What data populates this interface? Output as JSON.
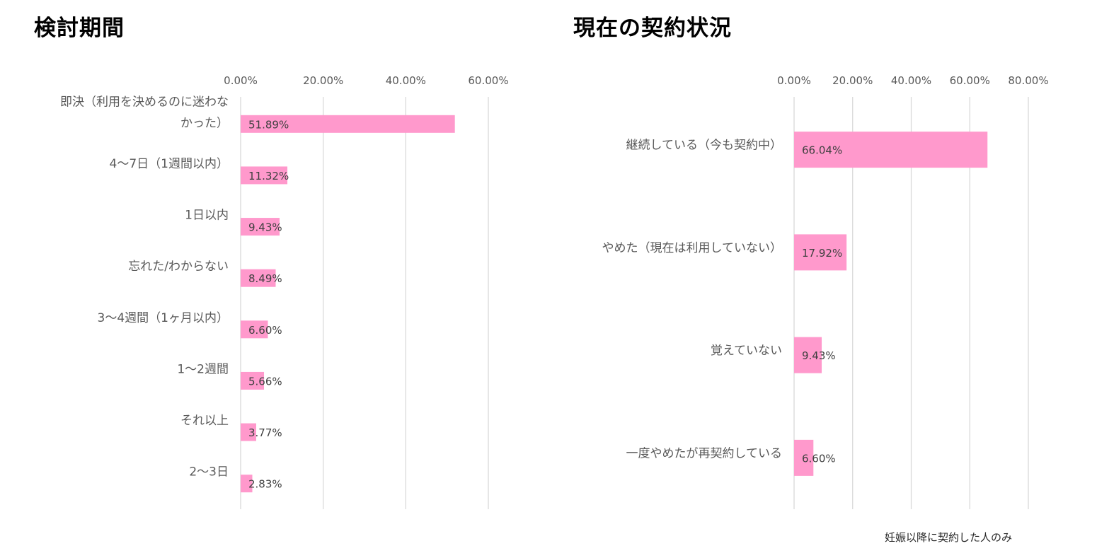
{
  "titles": {
    "left": "検討期間",
    "right": "現在の契約状況"
  },
  "footnote": "妊娠以降に契約した人のみ",
  "colors": {
    "bar": "#ff99cc",
    "grid": "#d9d9d9",
    "axis_text": "#595959",
    "data_label": "#404040"
  },
  "chart_data": [
    {
      "type": "bar",
      "orientation": "horizontal",
      "title": "検討期間",
      "categories": [
        [
          "即決（利用を決めるのに迷わな",
          "かった）"
        ],
        "4〜7日（1週間以内）",
        "1日以内",
        "忘れた/わからない",
        "3〜4週間（1ヶ月以内）",
        "1〜2週間",
        "それ以上",
        "2〜3日"
      ],
      "values": [
        51.89,
        11.32,
        9.43,
        8.49,
        6.6,
        5.66,
        3.77,
        2.83
      ],
      "value_labels": [
        "51.89%",
        "11.32%",
        "9.43%",
        "8.49%",
        "6.60%",
        "5.66%",
        "3.77%",
        "2.83%"
      ],
      "xlim": [
        0,
        60
      ],
      "ticks": [
        0,
        20,
        40,
        60
      ],
      "tick_labels": [
        "0.00%",
        "20.00%",
        "40.00%",
        "60.00%"
      ],
      "grid": true,
      "legend": "none"
    },
    {
      "type": "bar",
      "orientation": "horizontal",
      "title": "現在の契約状況",
      "categories": [
        "継続している（今も契約中）",
        "やめた（現在は利用していない）",
        "覚えていない",
        "一度やめたが再契約している"
      ],
      "values": [
        66.04,
        17.92,
        9.43,
        6.6
      ],
      "value_labels": [
        "66.04%",
        "17.92%",
        "9.43%",
        "6.60%"
      ],
      "xlim": [
        0,
        80
      ],
      "ticks": [
        0,
        20,
        40,
        60,
        80
      ],
      "tick_labels": [
        "0.00%",
        "20.00%",
        "40.00%",
        "60.00%",
        "80.00%"
      ],
      "grid": true,
      "legend": "none"
    }
  ]
}
